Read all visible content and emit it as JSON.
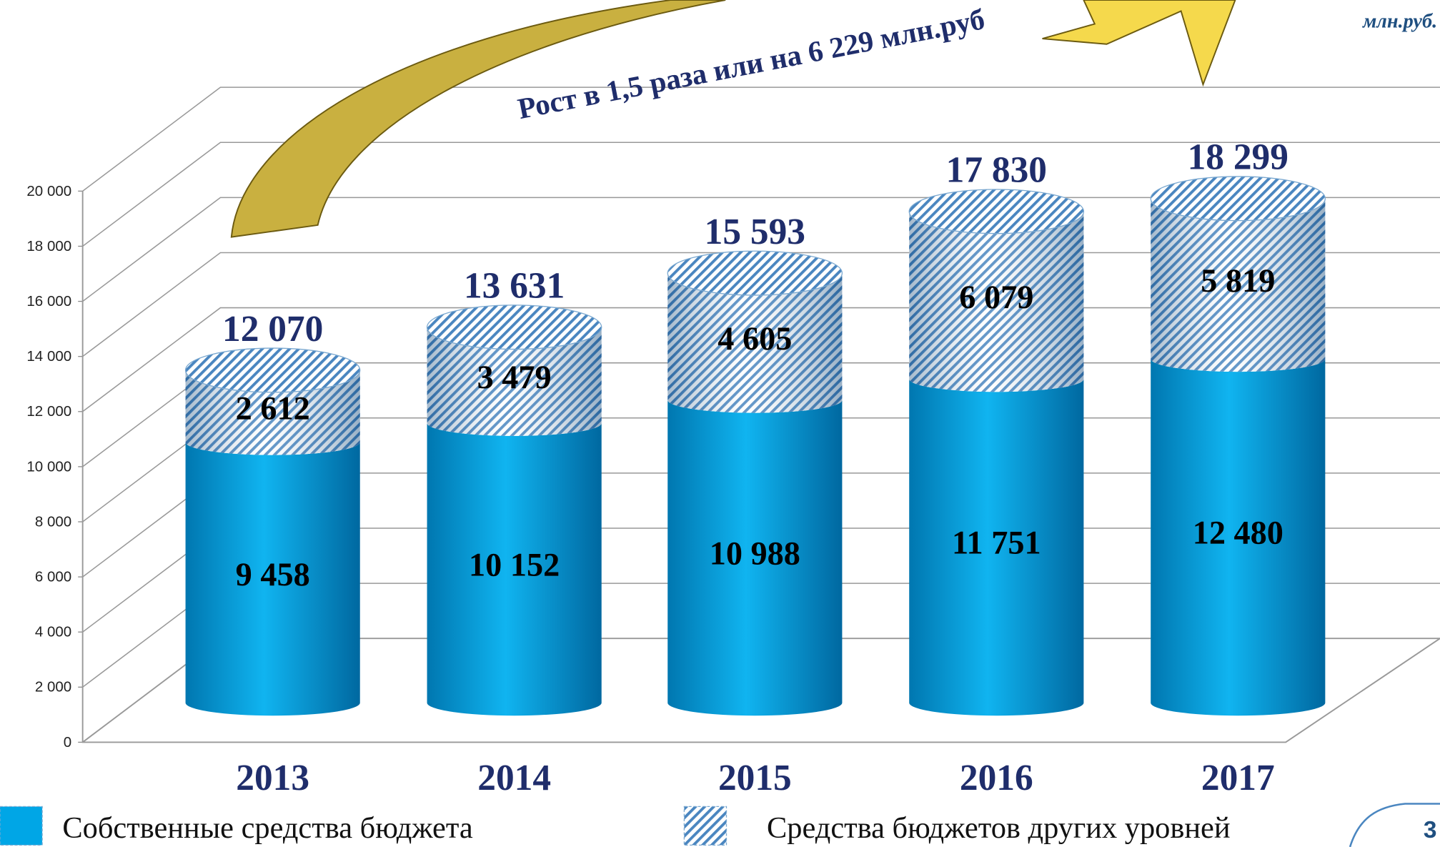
{
  "chart_data": {
    "type": "bar",
    "subtitle": "млн.руб.",
    "annotation": "Рост в 1,5 раза или на 6 229 млн.руб",
    "page_number": "3",
    "categories": [
      "2013",
      "2014",
      "2015",
      "2016",
      "2017"
    ],
    "series": [
      {
        "name": "Собственные средства бюджета",
        "color": "#00a6e6",
        "values": [
          9458,
          10152,
          10988,
          11751,
          12480
        ],
        "value_labels": [
          "9 458",
          "10 152",
          "10 988",
          "11 751",
          "12 480"
        ]
      },
      {
        "name": "Средства бюджетов других уровней",
        "color": "#4a86c0",
        "values": [
          2612,
          3479,
          4605,
          6079,
          5819
        ],
        "value_labels": [
          "2 612",
          "3 479",
          "4 605",
          "6 079",
          "5 819"
        ]
      }
    ],
    "totals": [
      12070,
      13631,
      15593,
      17830,
      18299
    ],
    "total_labels": [
      "12 070",
      "13 631",
      "15 593",
      "17 830",
      "18 299"
    ],
    "ylim": [
      0,
      20000
    ],
    "yticks": [
      0,
      {
        "value": 2000,
        "label": "2 000"
      },
      {
        "value": 4000,
        "label": "4 000"
      },
      {
        "value": 6000,
        "label": "6 000"
      },
      {
        "value": 8000,
        "label": "8 000"
      },
      {
        "value": 10000,
        "label": "10 000"
      },
      {
        "value": 12000,
        "label": "12 000"
      },
      {
        "value": 14000,
        "label": "14 000"
      },
      {
        "value": 16000,
        "label": "16 000"
      },
      {
        "value": 18000,
        "label": "18 000"
      },
      {
        "value": 20000,
        "label": "20 000"
      }
    ],
    "grid": true,
    "stacked": true,
    "legend": "bottom"
  }
}
